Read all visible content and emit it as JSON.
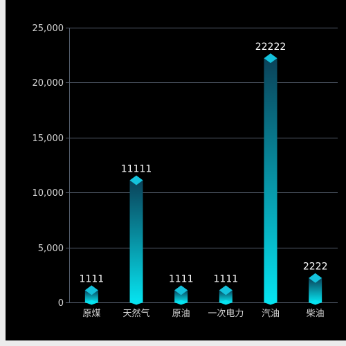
{
  "colors": {
    "background": "#000000",
    "grid": "#56606f",
    "axis_text": "#d6d6d6",
    "value_text": "#ffffff",
    "bar_top": "#0a4259",
    "bar_bottom": "#06e3f0",
    "cap": "#14c2dc"
  },
  "chart_data": {
    "type": "bar",
    "categories": [
      "原煤",
      "天然气",
      "原油",
      "一次电力",
      "汽油",
      "柴油"
    ],
    "values": [
      1111,
      11111,
      1111,
      1111,
      22222,
      2222
    ],
    "value_labels": [
      "1111",
      "11111",
      "1111",
      "1111",
      "22222",
      "2222"
    ],
    "y_ticks": [
      0,
      5000,
      10000,
      15000,
      20000,
      25000
    ],
    "y_tick_labels": [
      "0",
      "5,000",
      "10,000",
      "15,000",
      "20,000",
      "25,000"
    ],
    "ylim": [
      0,
      25000
    ],
    "grid": true,
    "title": "",
    "xlabel": "",
    "ylabel": ""
  }
}
